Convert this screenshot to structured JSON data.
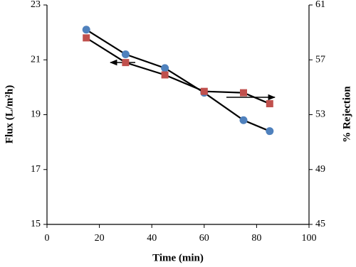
{
  "chart_data": {
    "type": "line",
    "x_label": "Time (min)",
    "y_label": "Flux (L/m²h)",
    "y2_label": "% Rejection",
    "x": [
      15,
      30,
      45,
      60,
      75,
      85
    ],
    "series": [
      {
        "color": "#4f81bd",
        "marker": "circle",
        "values": [
          22.1,
          21.2,
          20.7,
          19.8,
          18.8,
          18.4
        ]
      },
      {
        "color": "#c0504d",
        "marker": "square",
        "axis": "y2",
        "values": [
          58.6,
          56.8,
          55.9,
          54.7,
          54.6,
          53.8
        ]
      }
    ],
    "xlim": [
      0,
      100
    ],
    "xticks": [
      0,
      20,
      40,
      60,
      80,
      100
    ],
    "ylim": [
      15,
      23
    ],
    "yticks": [
      15,
      17,
      19,
      21,
      23
    ],
    "y2lim": [
      45,
      61
    ],
    "y2ticks": [
      45,
      49,
      53,
      57,
      61
    ]
  }
}
